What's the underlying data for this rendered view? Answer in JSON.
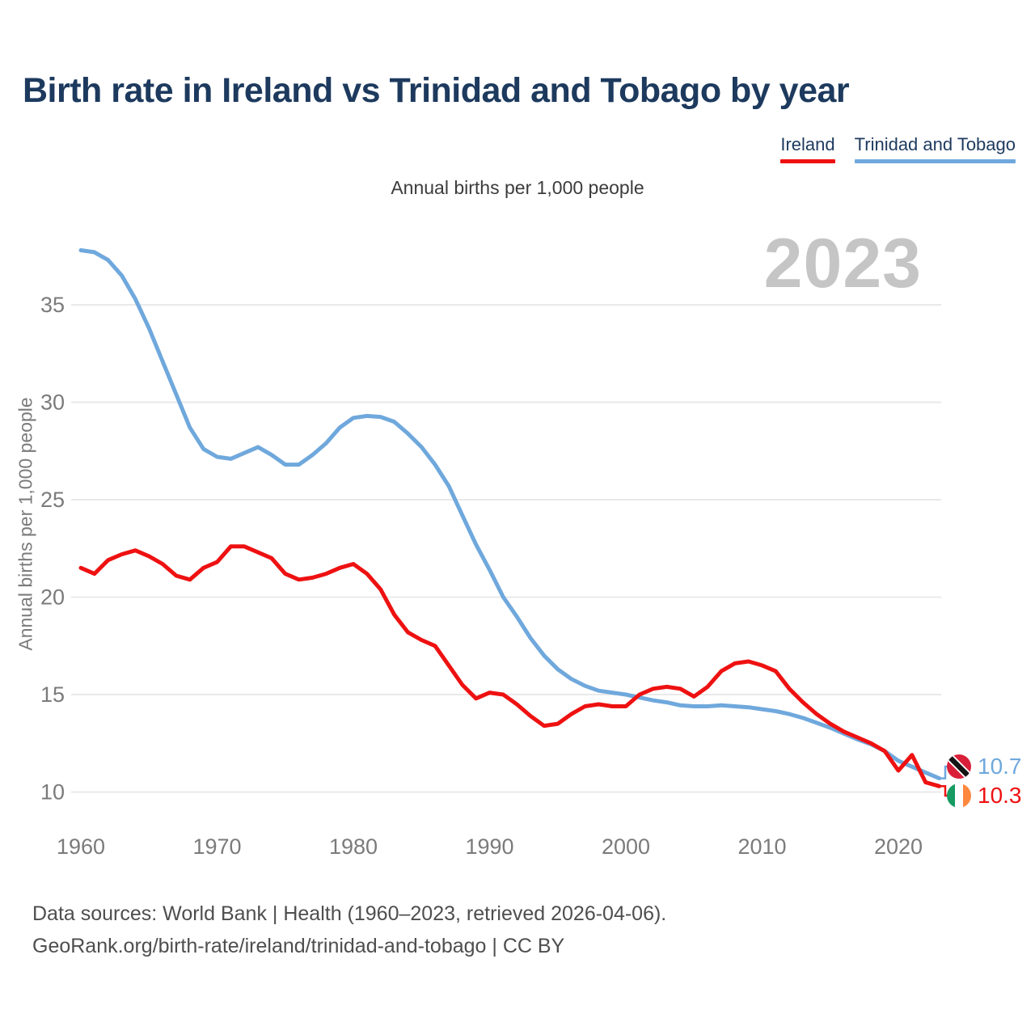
{
  "title": "Birth rate in Ireland vs Trinidad and Tobago by year",
  "subtitle": "Annual births per 1,000 people",
  "watermark": "2023",
  "legend": [
    {
      "label": "Ireland"
    },
    {
      "label": "Trinidad and Tobago"
    }
  ],
  "end_labels": [
    {
      "series": "Trinidad and Tobago",
      "value": "10.7",
      "flag": "trinidad-and-tobago-flag"
    },
    {
      "series": "Ireland",
      "value": "10.3",
      "flag": "ireland-flag"
    }
  ],
  "footer": {
    "line1": "Data sources: World Bank | Health (1960–2023, retrieved 2026-04-06).",
    "line2": "GeoRank.org/birth-rate/ireland/trinidad-and-tobago | CC BY"
  },
  "colors": {
    "ireland_line": "#ee1111",
    "trinidad_line": "#6fa8dc",
    "title_text": "#1d3a5e",
    "axis_text": "#7b7b7b",
    "gridline": "#e9e9e9",
    "watermark": "#c5c5c5"
  },
  "chart_data": {
    "type": "line",
    "title": "Birth rate in Ireland vs Trinidad and Tobago by year",
    "xlabel": "",
    "ylabel": "Annual births per 1,000 people",
    "legend_position": "top-right",
    "grid": true,
    "xlim": [
      1960,
      2023
    ],
    "ylim": [
      10,
      38
    ],
    "yticks": [
      10,
      15,
      20,
      25,
      30,
      35
    ],
    "xticks": [
      1960,
      1970,
      1980,
      1990,
      2000,
      2010,
      2020
    ],
    "x": [
      1960,
      1961,
      1962,
      1963,
      1964,
      1965,
      1966,
      1967,
      1968,
      1969,
      1970,
      1971,
      1972,
      1973,
      1974,
      1975,
      1976,
      1977,
      1978,
      1979,
      1980,
      1981,
      1982,
      1983,
      1984,
      1985,
      1986,
      1987,
      1988,
      1989,
      1990,
      1991,
      1992,
      1993,
      1994,
      1995,
      1996,
      1997,
      1998,
      1999,
      2000,
      2001,
      2002,
      2003,
      2004,
      2005,
      2006,
      2007,
      2008,
      2009,
      2010,
      2011,
      2012,
      2013,
      2014,
      2015,
      2016,
      2017,
      2018,
      2019,
      2020,
      2021,
      2022,
      2023
    ],
    "series": [
      {
        "name": "Ireland",
        "color": "#ee1111",
        "last_value_label": "10.3",
        "values": [
          21.5,
          21.2,
          21.9,
          22.2,
          22.4,
          22.1,
          21.7,
          21.1,
          20.9,
          21.5,
          21.8,
          22.6,
          22.6,
          22.3,
          22.0,
          21.2,
          20.9,
          21.0,
          21.2,
          21.5,
          21.7,
          21.2,
          20.4,
          19.1,
          18.2,
          17.8,
          17.5,
          16.5,
          15.5,
          14.8,
          15.1,
          15.0,
          14.5,
          13.9,
          13.4,
          13.5,
          14.0,
          14.4,
          14.5,
          14.4,
          14.4,
          15.0,
          15.3,
          15.4,
          15.3,
          14.9,
          15.4,
          16.2,
          16.6,
          16.7,
          16.5,
          16.2,
          15.3,
          14.6,
          14.0,
          13.5,
          13.1,
          12.8,
          12.5,
          12.1,
          11.1,
          11.9,
          10.5,
          10.3
        ]
      },
      {
        "name": "Trinidad and Tobago",
        "color": "#6fa8dc",
        "last_value_label": "10.7",
        "values": [
          37.8,
          37.7,
          37.3,
          36.5,
          35.3,
          33.8,
          32.1,
          30.4,
          28.7,
          27.6,
          27.2,
          27.1,
          27.4,
          27.7,
          27.3,
          26.8,
          26.8,
          27.3,
          27.9,
          28.7,
          29.2,
          29.3,
          29.25,
          29.0,
          28.4,
          27.7,
          26.8,
          25.7,
          24.2,
          22.7,
          21.4,
          20.0,
          19.0,
          17.9,
          17.0,
          16.3,
          15.8,
          15.45,
          15.2,
          15.1,
          15.0,
          14.85,
          14.7,
          14.6,
          14.45,
          14.4,
          14.4,
          14.45,
          14.4,
          14.35,
          14.25,
          14.15,
          14.0,
          13.8,
          13.55,
          13.3,
          13.0,
          12.7,
          12.45,
          12.1,
          11.6,
          11.3,
          11.0,
          10.7
        ]
      }
    ]
  }
}
